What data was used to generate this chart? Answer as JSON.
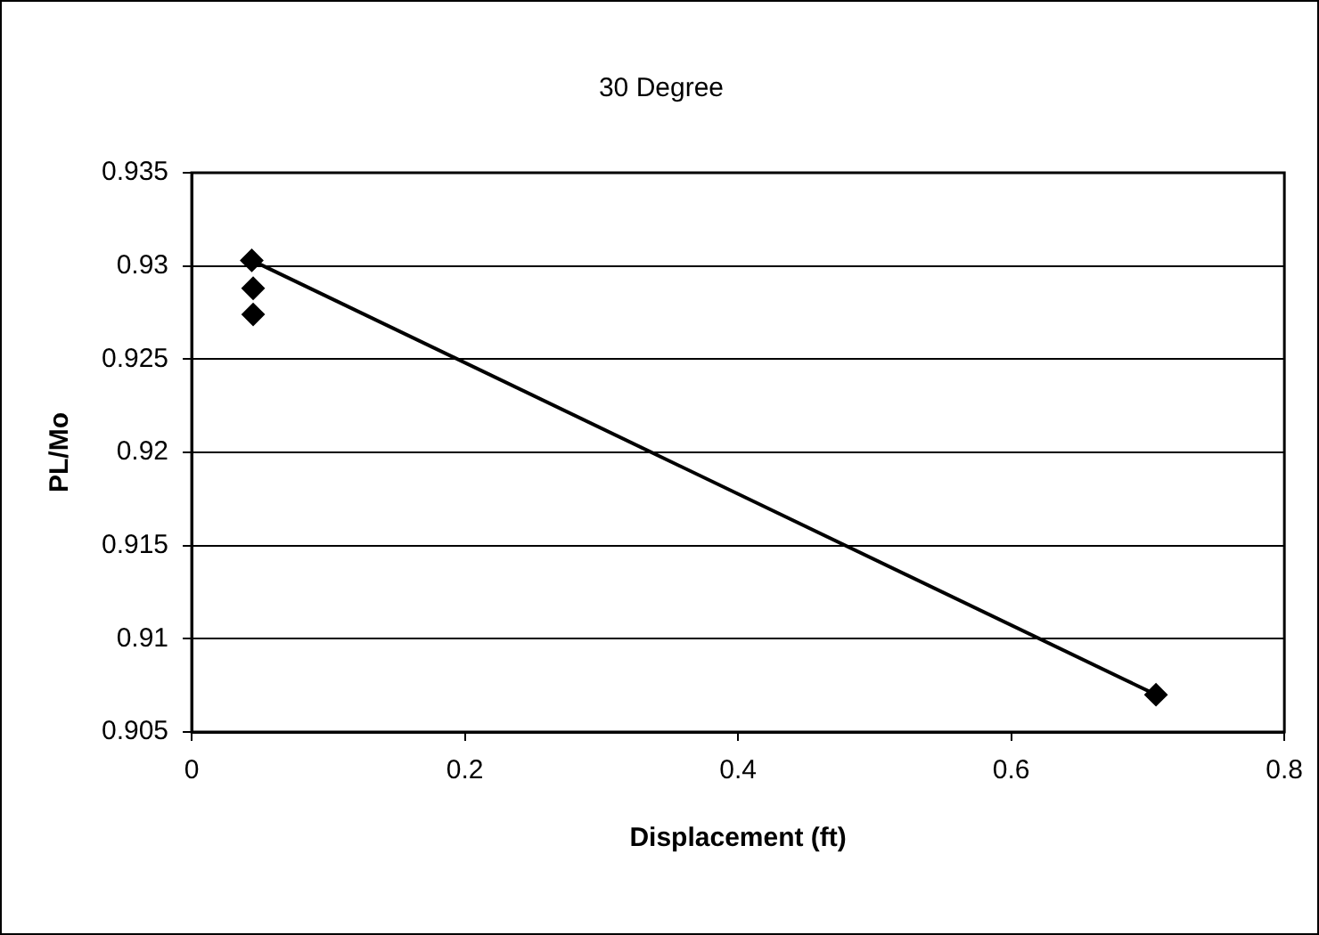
{
  "chart_data": {
    "type": "scatter",
    "title": "30 Degree",
    "xlabel": "Displacement (ft)",
    "ylabel": "PL/Mo",
    "xlim": [
      0,
      0.8
    ],
    "xticks": [
      0,
      0.2,
      0.4,
      0.6,
      0.8
    ],
    "ylim": [
      0.905,
      0.935
    ],
    "yticks": [
      0.905,
      0.91,
      0.915,
      0.92,
      0.925,
      0.93,
      0.935
    ],
    "grid": "y",
    "legend": false,
    "marker": "diamond",
    "series": [
      {
        "color": "#000000",
        "x": [
          0.044,
          0.045,
          0.045,
          0.706
        ],
        "values": [
          0.9303,
          0.9288,
          0.9274,
          0.907
        ]
      },
      {
        "type": "line",
        "color": "#000000",
        "marker": "none",
        "line_style": "solid",
        "x": [
          0.044,
          0.706
        ],
        "values": [
          0.9303,
          0.907
        ]
      }
    ]
  }
}
